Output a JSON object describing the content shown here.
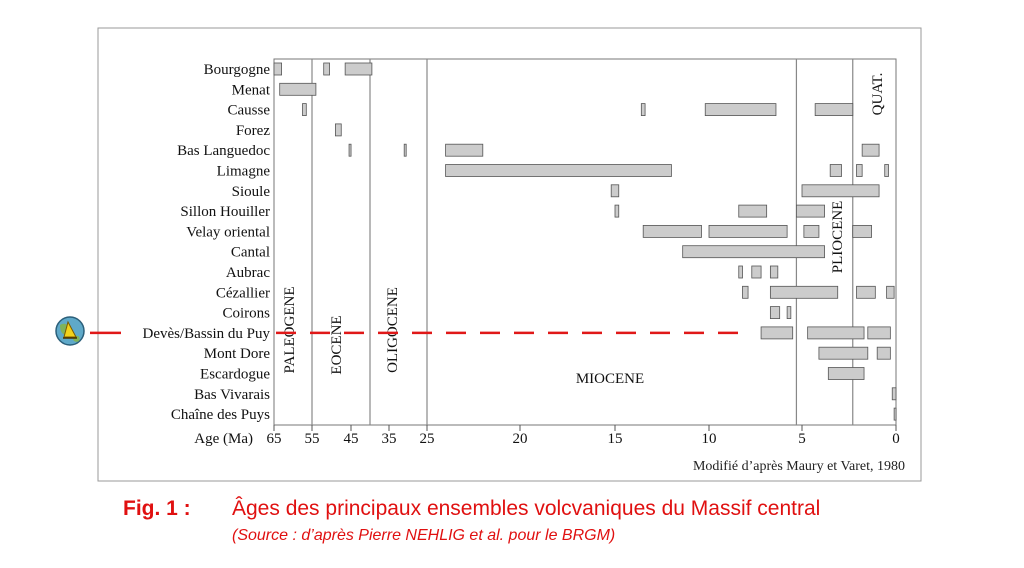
{
  "chart_data": {
    "type": "range-bar",
    "title": "",
    "xlabel": "Age (Ma)",
    "x_ticks": [
      "65",
      "55",
      "45",
      "35",
      "25",
      "20",
      "15",
      "10",
      "5",
      "0"
    ],
    "credit": "Modifié d’après Maury et Varet, 1980",
    "epochs": [
      {
        "name": "PALEOGENE",
        "from": 65,
        "to": 55
      },
      {
        "name": "EOCENE",
        "from": 55,
        "to": 40
      },
      {
        "name": "OLIGOCENE",
        "from": 40,
        "to": 25
      },
      {
        "name": "MIOCENE",
        "from": 25,
        "to": 5.3
      },
      {
        "name": "PLIOCENE",
        "from": 5.3,
        "to": 2.3
      },
      {
        "name": "QUAT.",
        "from": 2.3,
        "to": 0
      }
    ],
    "boundaries": [
      55,
      40,
      25,
      5.3,
      2.3
    ],
    "highlight_row": "Devès/Bassin du Puy",
    "rows": [
      {
        "name": "Bourgogne",
        "ranges": [
          [
            65,
            63
          ],
          [
            52,
            50.5
          ],
          [
            46.5,
            39.5
          ]
        ]
      },
      {
        "name": "Menat",
        "ranges": [
          [
            63.5,
            54
          ]
        ]
      },
      {
        "name": "Causse",
        "ranges": [
          [
            57.5,
            56.5
          ],
          [
            13.6,
            13.4
          ],
          [
            10.2,
            6.4
          ],
          [
            4.3,
            2.3
          ]
        ]
      },
      {
        "name": "Forez",
        "ranges": [
          [
            49,
            47.5
          ]
        ]
      },
      {
        "name": "Bas Languedoc",
        "ranges": [
          [
            45.5,
            45.2
          ],
          [
            31,
            30.5
          ],
          [
            24,
            22
          ],
          [
            1.8,
            0.9
          ]
        ]
      },
      {
        "name": "Limagne",
        "ranges": [
          [
            24,
            12
          ],
          [
            3.5,
            2.9
          ],
          [
            2.1,
            1.8
          ],
          [
            0.6,
            0.4
          ]
        ]
      },
      {
        "name": "Sioule",
        "ranges": [
          [
            15.2,
            14.8
          ],
          [
            5,
            0.9
          ]
        ]
      },
      {
        "name": "Sillon Houiller",
        "ranges": [
          [
            15,
            14.8
          ],
          [
            8.4,
            6.9
          ],
          [
            5.3,
            3.8
          ]
        ]
      },
      {
        "name": "Velay oriental",
        "ranges": [
          [
            13.5,
            10.4
          ],
          [
            10,
            5.8
          ],
          [
            4.9,
            4.1
          ],
          [
            2.3,
            1.3
          ]
        ]
      },
      {
        "name": "Cantal",
        "ranges": [
          [
            11.4,
            3.8
          ]
        ]
      },
      {
        "name": "Aubrac",
        "ranges": [
          [
            8.4,
            8.2
          ],
          [
            7.7,
            7.2
          ],
          [
            6.7,
            6.3
          ]
        ]
      },
      {
        "name": "Cézallier",
        "ranges": [
          [
            8.2,
            7.9
          ],
          [
            6.7,
            3.1
          ],
          [
            2.1,
            1.1
          ],
          [
            0.5,
            0.1
          ]
        ]
      },
      {
        "name": "Coirons",
        "ranges": [
          [
            6.7,
            6.2
          ],
          [
            5.8,
            5.6
          ]
        ]
      },
      {
        "name": "Devès/Bassin du Puy",
        "ranges": [
          [
            7.2,
            5.5
          ],
          [
            4.7,
            1.7
          ],
          [
            1.5,
            0.3
          ]
        ]
      },
      {
        "name": "Mont Dore",
        "ranges": [
          [
            4.1,
            1.5
          ],
          [
            1,
            0.3
          ]
        ]
      },
      {
        "name": "Escardogue",
        "ranges": [
          [
            3.6,
            1.7
          ]
        ]
      },
      {
        "name": "Bas Vivarais",
        "ranges": [
          [
            0.2,
            0
          ]
        ]
      },
      {
        "name": "Chaîne des Puys",
        "ranges": [
          [
            0.1,
            0
          ]
        ]
      }
    ]
  },
  "caption": {
    "fig_label": "Fig. 1  :",
    "fig_title": "Âges des principaux ensembles volcvaniques du Massif central",
    "source": "(Source : d’après Pierre NEHLIG et al. pour le BRGM)"
  },
  "colors": {
    "bar_fill": "#cccccc",
    "bar_stroke": "#555555",
    "line": "#888888",
    "highlight": "#e01818",
    "caption": "#e01010"
  },
  "icons": {
    "marker": "globe-pen-icon"
  }
}
